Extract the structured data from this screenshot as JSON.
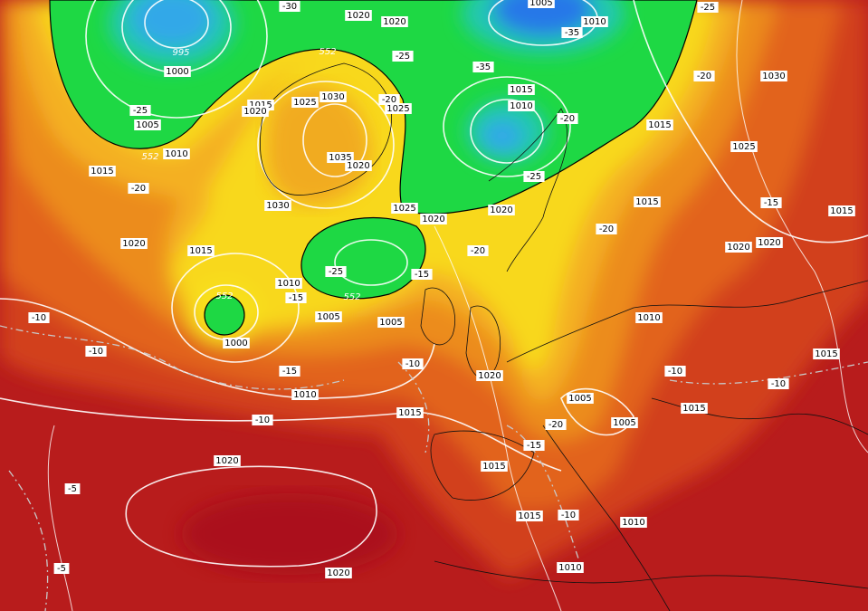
{
  "labels": [
    "1020",
    "1020",
    "1005",
    "1010",
    "-35",
    "-30",
    "-25",
    "995",
    "1000",
    "-25",
    "-35",
    "-20",
    "1030",
    "1015",
    "1030",
    "1025",
    "-20",
    "1015",
    "1020",
    "-25",
    "1025",
    "1010",
    "-20",
    "1005",
    "1015",
    "1010",
    "1025",
    "1035",
    "1020",
    "1015",
    "-25",
    "-20",
    "1030",
    "1025",
    "1020",
    "1020",
    "1015",
    "-15",
    "1015",
    "-20",
    "1020",
    "-20",
    "1020",
    "1020",
    "1015",
    "-25",
    "-15",
    "1010",
    "-15",
    "1005",
    "1005",
    "1010",
    "-10",
    "1000",
    "-10",
    "1015",
    "-15",
    "-10",
    "-10",
    "1020",
    "-10",
    "1010",
    "1005",
    "1015",
    "1015",
    "-10",
    "-20",
    "1005",
    "-15",
    "1020",
    "1015",
    "-5",
    "1015",
    "-10",
    "1010",
    "-5",
    "1020",
    "1010",
    "552",
    "552",
    "552",
    "552"
  ]
}
